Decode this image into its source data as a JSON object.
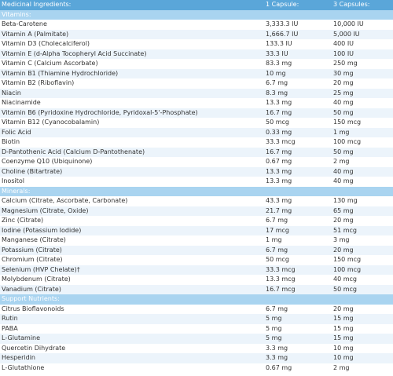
{
  "header": {
    "col1": "Medicinal Ingredients:",
    "col2": "1 Capsule:",
    "col3": "3 Capsules:"
  },
  "sections": [
    {
      "title": "Vitamins:",
      "rows": [
        {
          "name": "Beta-Carotene",
          "one": "3,333.3 IU",
          "three": "10,000 IU"
        },
        {
          "name": "Vitamin A (Palmitate)",
          "one": "1,666.7 IU",
          "three": "5,000 IU"
        },
        {
          "name": "Vitamin D3 (Cholecalciferol)",
          "one": "133.3 IU",
          "three": "400 IU"
        },
        {
          "name": "Vitamin E (d-Alpha Tocopheryl Acid Succinate)",
          "one": "33.3 IU",
          "three": "100 IU"
        },
        {
          "name": "Vitamin C (Calcium Ascorbate)",
          "one": "83.3 mg",
          "three": "250 mg"
        },
        {
          "name": "Vitamin B1 (Thiamine Hydrochloride)",
          "one": "10 mg",
          "three": "30 mg"
        },
        {
          "name": "Vitamin B2 (Riboflavin)",
          "one": "6.7 mg",
          "three": "20 mg"
        },
        {
          "name": "Niacin",
          "one": "8.3 mg",
          "three": "25 mg"
        },
        {
          "name": "Niacinamide",
          "one": "13.3 mg",
          "three": "40 mg"
        },
        {
          "name": "Vitamin B6 (Pyridoxine Hydrochloride, Pyridoxal-5'-Phosphate)",
          "one": "16.7 mg",
          "three": "50 mg"
        },
        {
          "name": "Vitamin B12 (Cyanocobalamin)",
          "one": "50 mcg",
          "three": "150 mcg"
        },
        {
          "name": "Folic Acid",
          "one": "0.33 mg",
          "three": "1 mg"
        },
        {
          "name": "Biotin",
          "one": "33.3 mcg",
          "three": "100 mcg"
        },
        {
          "name": "D-Pantothenic Acid (Calcium D-Pantothenate)",
          "one": "16.7 mg",
          "three": "50 mg"
        },
        {
          "name": "Coenzyme Q10 (Ubiquinone)",
          "one": "0.67 mg",
          "three": "2 mg"
        },
        {
          "name": "Choline (Bitartrate)",
          "one": "13.3 mg",
          "three": "40 mg"
        },
        {
          "name": "Inositol",
          "one": "13.3 mg",
          "three": "40 mg"
        }
      ]
    },
    {
      "title": "Minerals:",
      "rows": [
        {
          "name": "Calcium (Citrate, Ascorbate, Carbonate)",
          "one": "43.3 mg",
          "three": "130 mg"
        },
        {
          "name": "Magnesium (Citrate, Oxide)",
          "one": "21.7 mg",
          "three": "65 mg"
        },
        {
          "name": "Zinc (Citrate)",
          "one": "6.7 mg",
          "three": "20 mg"
        },
        {
          "name": "Iodine (Potassium Iodide)",
          "one": "17 mcg",
          "three": "51 mcg"
        },
        {
          "name": "Manganese (Citrate)",
          "one": "1 mg",
          "three": "3 mg"
        },
        {
          "name": "Potassium (Citrate)",
          "one": "6.7 mg",
          "three": "20 mg"
        },
        {
          "name": "Chromium (Citrate)",
          "one": "50 mcg",
          "three": "150 mcg"
        },
        {
          "name": "Selenium (HVP Chelate)†",
          "one": "33.3 mcg",
          "three": "100 mcg"
        },
        {
          "name": "Molybdenum (Citrate)",
          "one": "13.3 mcg",
          "three": "40 mcg"
        },
        {
          "name": "Vanadium (Citrate)",
          "one": "16.7 mcg",
          "three": "50 mcg"
        }
      ]
    },
    {
      "title": "Support Nutrients:",
      "rows": [
        {
          "name": "Citrus Bioflavonoids",
          "one": "6.7 mg",
          "three": "20 mg"
        },
        {
          "name": "Rutin",
          "one": "5 mg",
          "three": "15 mg"
        },
        {
          "name": "PABA",
          "one": "5 mg",
          "three": "15 mg"
        },
        {
          "name": "L-Glutamine",
          "one": "5 mg",
          "three": "15 mg"
        },
        {
          "name": "Quercetin Dihydrate",
          "one": "3.3 mg",
          "three": "10 mg"
        },
        {
          "name": "Hesperidin",
          "one": "3.3 mg",
          "three": "10 mg"
        },
        {
          "name": "L-Glutathione",
          "one": "0.67 mg",
          "three": "2 mg"
        }
      ]
    }
  ],
  "colors": {
    "header_bg": "#5aa6d9",
    "section_bg": "#a9d4f0",
    "stripe_bg": "#ecf4fb"
  }
}
